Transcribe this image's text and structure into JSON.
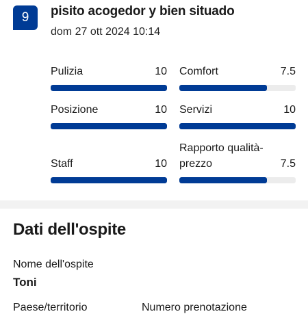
{
  "review": {
    "score": "9",
    "title": "pisito acogedor y bien situado",
    "date": "dom 27 ott 2024 10:14"
  },
  "categories": [
    {
      "label": "Pulizia",
      "value": "10",
      "fraction": 1.0
    },
    {
      "label": "Comfort",
      "value": "7.5",
      "fraction": 0.75
    },
    {
      "label": "Posizione",
      "value": "10",
      "fraction": 1.0
    },
    {
      "label": "Servizi",
      "value": "10",
      "fraction": 1.0
    },
    {
      "label": "Staff",
      "value": "10",
      "fraction": 1.0
    },
    {
      "label_line1": "Rapporto qualità-",
      "label_line2": "prezzo",
      "value": "7.5",
      "fraction": 0.75
    }
  ],
  "guest": {
    "section_title": "Dati dell'ospite",
    "name_label": "Nome dell'ospite",
    "name_value": "Toni",
    "country_label": "Paese/territorio",
    "booking_label": "Numero prenotazione"
  },
  "colors": {
    "accent": "#003b95",
    "bar_track": "#ececec",
    "divider": "#f2f2f2"
  }
}
